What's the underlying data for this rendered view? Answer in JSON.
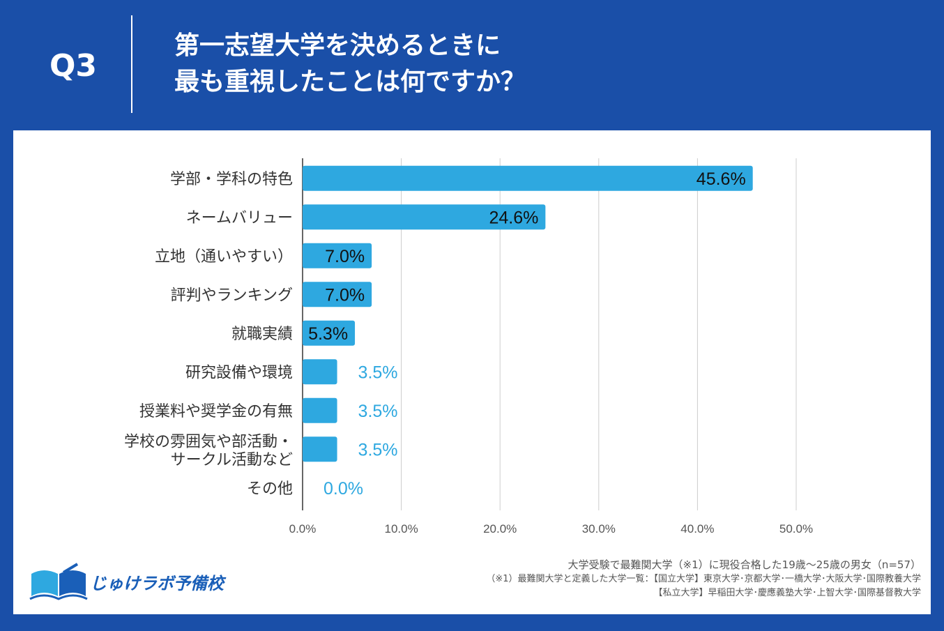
{
  "header": {
    "qnum": "Q3",
    "title_line1": "第一志望大学を決めるときに",
    "title_line2": "最も重視したことは何ですか？"
  },
  "colors": {
    "background": "#1a4fa8",
    "bar": "#2ea8e0",
    "panel": "#ffffff"
  },
  "chart_data": {
    "type": "bar",
    "orientation": "horizontal",
    "categories": [
      [
        "学部・学科の特色"
      ],
      [
        "ネームバリュー"
      ],
      [
        "立地（通いやすい）"
      ],
      [
        "評判やランキング"
      ],
      [
        "就職実績"
      ],
      [
        "研究設備や環境"
      ],
      [
        "授業料や奨学金の有無"
      ],
      [
        "学校の雰囲気や部活動・",
        "サークル活動など"
      ],
      [
        "その他"
      ]
    ],
    "values": [
      45.6,
      24.6,
      7.0,
      7.0,
      5.3,
      3.5,
      3.5,
      3.5,
      0.0
    ],
    "value_labels": [
      "45.6%",
      "24.6%",
      "7.0%",
      "7.0%",
      "5.3%",
      "3.5%",
      "3.5%",
      "3.5%",
      "0.0%"
    ],
    "xlim": [
      0,
      50
    ],
    "ticks": [
      "0.0%",
      "10.0%",
      "20.0%",
      "30.0%",
      "40.0%",
      "50.0%"
    ],
    "grid": true
  },
  "logo": {
    "text": "じゅけラボ予備校",
    "icon": "open-book-icon"
  },
  "notes": {
    "line1": "大学受験で最難関大学（※1）に現役合格した19歳〜25歳の男女（n=57）",
    "line2": "（※1）最難関大学と定義した大学一覧：【国立大学】東京大学･京都大学･一橋大学･大阪大学･国際教養大学",
    "line3": "【私立大学】早稲田大学･慶應義塾大学･上智大学･国際基督教大学"
  }
}
